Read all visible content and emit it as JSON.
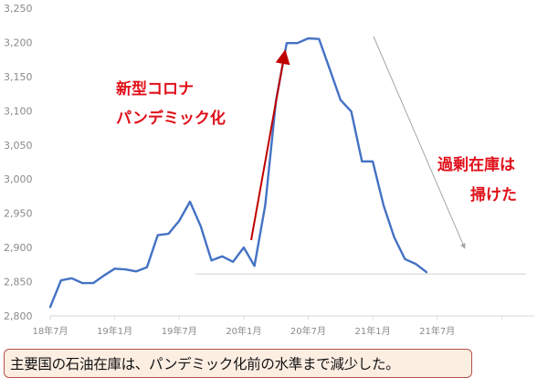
{
  "chart_data": {
    "type": "line",
    "title": "",
    "xlabel": "",
    "ylabel": "",
    "ylim": [
      2800,
      3250
    ],
    "yticks": [
      "3,250",
      "3,200",
      "3,150",
      "3,100",
      "3,050",
      "3,000",
      "2,950",
      "2,900",
      "2,850",
      "2,800"
    ],
    "xtick_labels": [
      "18年7月",
      "19年1月",
      "19年7月",
      "20年1月",
      "20年7月",
      "21年1月",
      "21年7月"
    ],
    "grid": false,
    "legend": null,
    "series": [
      {
        "name": "主要国の石油在庫",
        "color": "#4472c4",
        "x": [
          "18年7月",
          "18年8月",
          "18年9月",
          "18年10月",
          "18年11月",
          "18年12月",
          "19年1月",
          "19年2月",
          "19年3月",
          "19年4月",
          "19年5月",
          "19年6月",
          "19年7月",
          "19年8月",
          "19年9月",
          "19年10月",
          "19年11月",
          "19年12月",
          "20年1月",
          "20年2月",
          "20年3月",
          "20年4月",
          "20年5月",
          "20年6月",
          "20年7月",
          "20年8月",
          "20年9月",
          "20年10月",
          "20年11月",
          "20年12月",
          "21年1月",
          "21年2月",
          "21年3月",
          "21年4月",
          "21年5月",
          "21年6月"
        ],
        "values": [
          2813,
          2852,
          2855,
          2848,
          2848,
          2859,
          2869,
          2868,
          2865,
          2871,
          2918,
          2920,
          2939,
          2967,
          2931,
          2881,
          2887,
          2879,
          2900,
          2873,
          2962,
          3115,
          3199,
          3199,
          3206,
          3205,
          3161,
          3116,
          3099,
          3026,
          3026,
          2962,
          2915,
          2883,
          2876,
          2864
        ]
      }
    ],
    "reference_line": {
      "value": 2864,
      "style": "thin grey horizontal"
    },
    "annotations": [
      {
        "text": "新型コロナ",
        "color": "#e0101a"
      },
      {
        "text": "パンデミック化",
        "color": "#e0101a"
      },
      {
        "text": "過剰在庫は",
        "color": "#e0101a"
      },
      {
        "text": "掃けた",
        "color": "#e0101a"
      },
      {
        "type": "arrow",
        "color": "#c00000",
        "direction": "up"
      },
      {
        "type": "arrow",
        "color": "#a6a6a6",
        "direction": "down"
      }
    ]
  },
  "annotations": {
    "pandemic_line1": "新型コロナ",
    "pandemic_line2": "パンデミック化",
    "excess_line1": "過剰在庫は",
    "excess_line2": "掃けた"
  },
  "caption": "主要国の石油在庫は、パンデミック化前の水準まで減少した。",
  "colors": {
    "line": "#4472c4",
    "annotation_text": "#e0101a",
    "up_arrow": "#c00000",
    "down_arrow": "#a6a6a6",
    "caption_bg": "#fdeee2",
    "caption_border": "#b5514d"
  }
}
